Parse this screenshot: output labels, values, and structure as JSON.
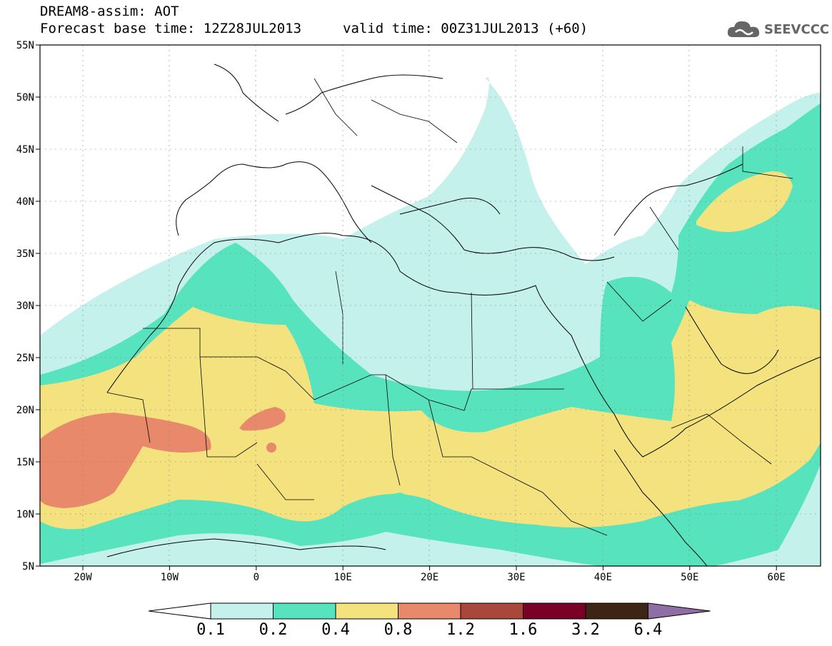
{
  "title": {
    "line1": "DREAM8-assim: AOT",
    "line2": "Forecast base time: 12Z28JUL2013",
    "valid": "valid time: 00Z31JUL2013 (+60)"
  },
  "logo": {
    "text": "SEEVCCC",
    "icon": "cloud-icon"
  },
  "axes": {
    "lat_labels": [
      "55N",
      "50N",
      "45N",
      "40N",
      "35N",
      "30N",
      "25N",
      "20N",
      "15N",
      "10N",
      "5N"
    ],
    "lon_labels": [
      "20W",
      "10W",
      "0",
      "10E",
      "20E",
      "30E",
      "40E",
      "50E",
      "60E"
    ]
  },
  "legend": {
    "labels": [
      "0.1",
      "0.2",
      "0.4",
      "0.8",
      "1.2",
      "1.6",
      "3.2",
      "6.4"
    ],
    "colors": [
      "#c4f1ec",
      "#57e3be",
      "#f4e27e",
      "#e9896b",
      "#a9483a",
      "#7b0026",
      "#3d2414",
      "#8f6ea6"
    ]
  },
  "colors": {
    "c1": "#c4f1ec",
    "c2": "#57e3be",
    "c3": "#f4e27e",
    "c4": "#e9896b"
  }
}
